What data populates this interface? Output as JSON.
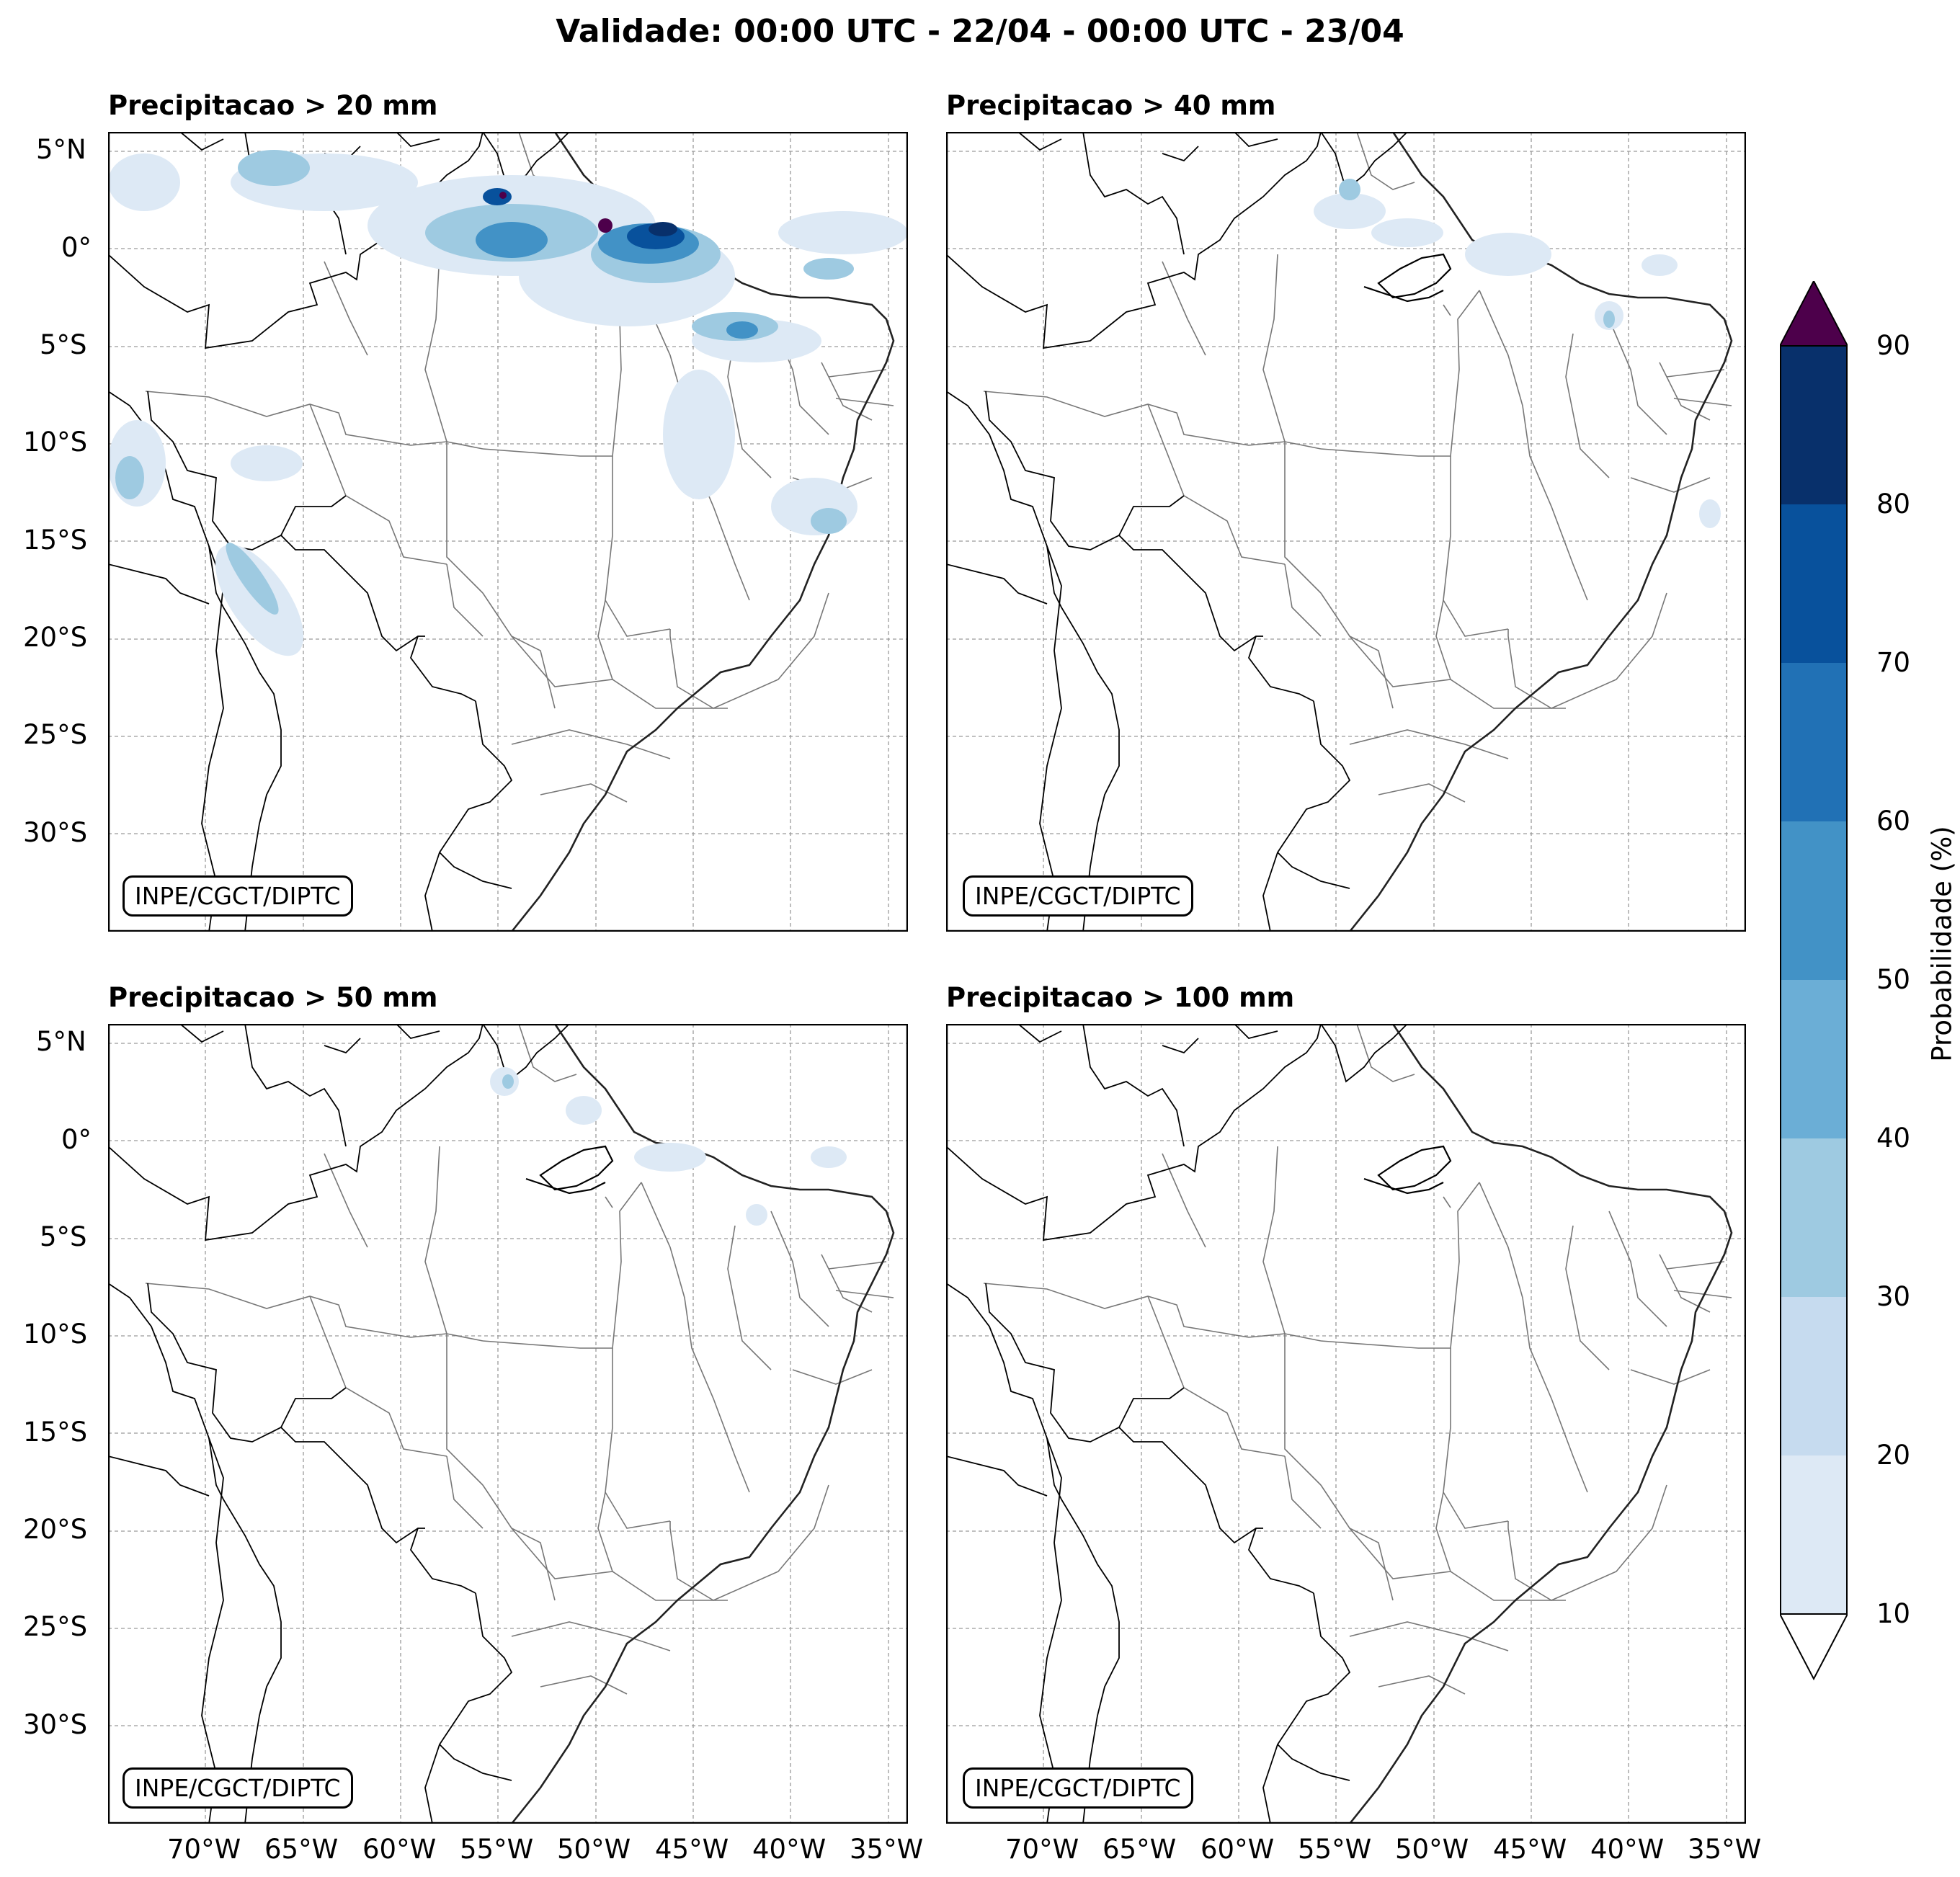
{
  "suptitle": "Validade: 00:00 UTC - 22/04 - 00:00 UTC - 23/04",
  "credit": "INPE/CGCT/DIPTC",
  "panels": [
    {
      "title": "Precipitacao > 20 mm",
      "threshold_mm": 20
    },
    {
      "title": "Precipitacao > 40 mm",
      "threshold_mm": 40
    },
    {
      "title": "Precipitacao > 50 mm",
      "threshold_mm": 50
    },
    {
      "title": "Precipitacao > 100 mm",
      "threshold_mm": 100
    }
  ],
  "lat_ticks": [
    "5°N",
    "0°",
    "5°S",
    "10°S",
    "15°S",
    "20°S",
    "25°S",
    "30°S"
  ],
  "lon_ticks": [
    "70°W",
    "65°W",
    "60°W",
    "55°W",
    "50°W",
    "45°W",
    "40°W",
    "35°W"
  ],
  "colorbar": {
    "label": "Probabilidade (%)",
    "ticks": [
      "10",
      "20",
      "30",
      "40",
      "50",
      "60",
      "70",
      "80",
      "90"
    ],
    "colors": [
      "#dde9f5",
      "#c6dbef",
      "#9ecae1",
      "#6baed6",
      "#4292c6",
      "#2171b5",
      "#08519c",
      "#08306b"
    ],
    "over_color": "#4d004b",
    "under_color": "#ffffff"
  },
  "chart_data": {
    "type": "heatmap",
    "map_extent": {
      "lon": [
        -75,
        -34
      ],
      "lat": [
        -35,
        6
      ]
    },
    "grid": true,
    "levels": [
      10,
      20,
      30,
      40,
      50,
      60,
      70,
      80,
      90
    ]
  }
}
